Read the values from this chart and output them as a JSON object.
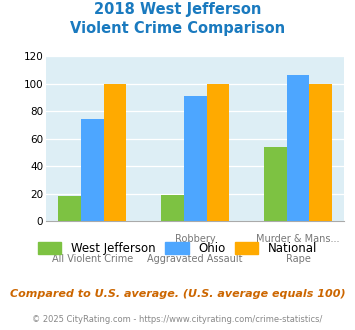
{
  "title_line1": "2018 West Jefferson",
  "title_line2": "Violent Crime Comparison",
  "west_jefferson": [
    18,
    19,
    54
  ],
  "ohio": [
    74,
    91,
    106
  ],
  "national": [
    100,
    100,
    100
  ],
  "ylim": [
    0,
    120
  ],
  "yticks": [
    0,
    20,
    40,
    60,
    80,
    100,
    120
  ],
  "bar_width": 0.22,
  "color_wj": "#7dc242",
  "color_ohio": "#4da6ff",
  "color_national": "#ffaa00",
  "title_color": "#1a7abf",
  "bg_color": "#ddeef5",
  "tick_labels_top": [
    "",
    "Robbery",
    "Murder & Mans..."
  ],
  "tick_labels_bot": [
    "All Violent Crime",
    "Aggravated Assault",
    "Rape"
  ],
  "legend_labels": [
    "West Jefferson",
    "Ohio",
    "National"
  ],
  "footnote": "Compared to U.S. average. (U.S. average equals 100)",
  "copyright": "© 2025 CityRating.com - https://www.cityrating.com/crime-statistics/",
  "footnote_color": "#cc6600",
  "copyright_color": "#888888"
}
